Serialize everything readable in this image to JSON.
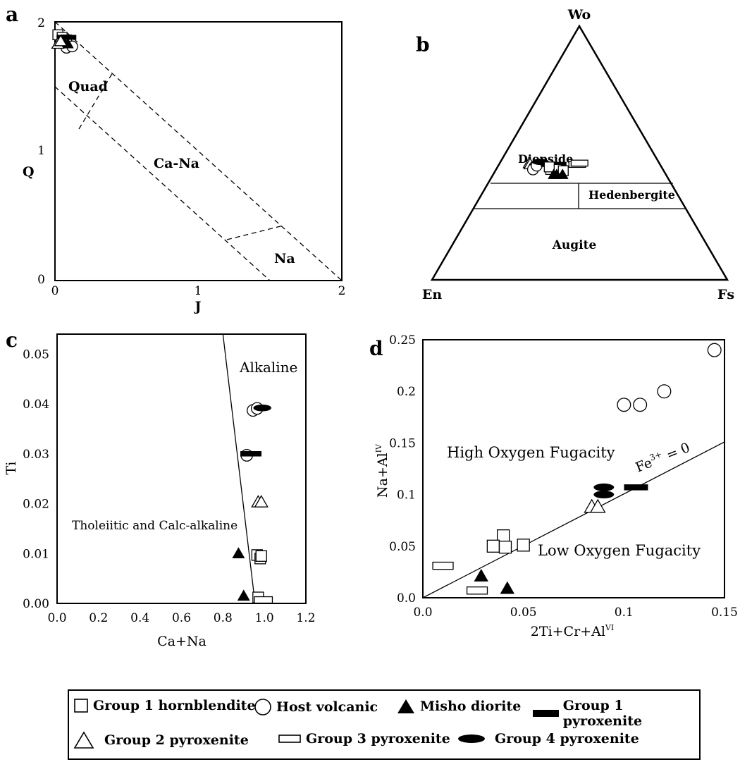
{
  "panels": {
    "a": {
      "letter": "a",
      "xlabel": "J",
      "ylabel": "Q",
      "xticks": [
        "0",
        "1",
        "2"
      ],
      "yticks": [
        "0",
        "1",
        "2"
      ],
      "regions": [
        "Quad",
        "Ca-Na",
        "Na"
      ]
    },
    "b": {
      "letter": "b",
      "vertices": [
        "Wo",
        "En",
        "Fs"
      ],
      "regions": [
        "Diopside",
        "Hedenbergite",
        "Augite"
      ]
    },
    "c": {
      "letter": "c",
      "xlabel": "Ca+Na",
      "ylabel": "Ti",
      "xticks": [
        "0.0",
        "0.2",
        "0.4",
        "0.6",
        "0.8",
        "1.0",
        "1.2"
      ],
      "yticks": [
        "0.00",
        "0.01",
        "0.02",
        "0.03",
        "0.04",
        "0.05"
      ],
      "regions": [
        "Alkaline",
        "Tholeiitic and Calc-alkaline"
      ]
    },
    "d": {
      "letter": "d",
      "xlabel_main": "2Ti+Cr+Al",
      "xlabel_sup": "VI",
      "ylabel_main": "Na+Al",
      "ylabel_sup": "IV",
      "xticks": [
        "0.0",
        "0.05",
        "0.1",
        "0.15"
      ],
      "yticks": [
        "0.0",
        "0.05",
        "0.1",
        "0.15",
        "0.2",
        "0.25"
      ],
      "regions": [
        "High Oxygen Fugacity",
        "Low Oxygen Fugacity"
      ],
      "line_label_main": "Fe",
      "line_label_sup": "3+",
      "line_label_rest": " = 0"
    }
  },
  "legend": [
    {
      "label": "Group 1 hornblendite",
      "symbol": "open-square"
    },
    {
      "label": "Host volcanic",
      "symbol": "open-circle"
    },
    {
      "label": "Misho diorite",
      "symbol": "filled-triangle"
    },
    {
      "label": "Group 1 pyroxenite",
      "symbol": "filled-bar"
    },
    {
      "label": "Group 2 pyroxenite",
      "symbol": "open-triangle"
    },
    {
      "label": "Group 3 pyroxenite",
      "symbol": "open-rectangle"
    },
    {
      "label": "Group 4 pyroxenite",
      "symbol": "filled-ellipse"
    }
  ],
  "chart_data": [
    {
      "panel": "a",
      "type": "scatter",
      "xlabel": "J",
      "ylabel": "Q",
      "xlim": [
        0,
        2
      ],
      "ylim": [
        0,
        2
      ],
      "series": [
        {
          "name": "Group 1 hornblendite",
          "symbol": "open-square",
          "points": [
            [
              0.02,
              1.9
            ],
            [
              0.05,
              1.88
            ],
            [
              0.08,
              1.86
            ]
          ]
        },
        {
          "name": "Host volcanic",
          "symbol": "open-circle",
          "points": [
            [
              0.08,
              1.8
            ],
            [
              0.12,
              1.81
            ],
            [
              0.06,
              1.84
            ]
          ]
        },
        {
          "name": "Misho diorite",
          "symbol": "filled-triangle",
          "points": [
            [
              0.06,
              1.85
            ],
            [
              0.09,
              1.83
            ]
          ]
        },
        {
          "name": "Group 1 pyroxenite",
          "symbol": "filled-bar",
          "points": [
            [
              0.08,
              1.88
            ]
          ]
        },
        {
          "name": "Group 2 pyroxenite",
          "symbol": "open-triangle",
          "points": [
            [
              0.02,
              1.83
            ],
            [
              0.04,
              1.85
            ]
          ]
        }
      ]
    },
    {
      "panel": "b",
      "type": "scatter",
      "vertices": [
        "Wo",
        "En",
        "Fs"
      ],
      "series": [
        {
          "name": "Group 2 pyroxenite",
          "symbol": "open-triangle",
          "points": [
            [
              46,
              44,
              10
            ],
            [
              45.5,
              44,
              10.5
            ]
          ]
        },
        {
          "name": "Host volcanic",
          "symbol": "open-circle",
          "points": [
            [
              44.5,
              43,
              12.5
            ],
            [
              43.5,
              44,
              12.5
            ],
            [
              45,
              42,
              13
            ]
          ]
        },
        {
          "name": "Group 4 pyroxenite",
          "symbol": "filled-ellipse",
          "points": [
            [
              46.5,
              40,
              13.5
            ]
          ]
        },
        {
          "name": "Group 1 pyroxenite",
          "symbol": "filled-bar",
          "points": [
            [
              45.5,
              37,
              17.5
            ],
            [
              45.5,
              35,
              19.5
            ]
          ]
        },
        {
          "name": "Group 1 hornblendite",
          "symbol": "open-square",
          "points": [
            [
              43.5,
              38,
              18.5
            ],
            [
              43.5,
              36,
              20.5
            ],
            [
              44.5,
              38,
              17.5
            ],
            [
              43,
              34,
              23
            ]
          ]
        },
        {
          "name": "Group 3 pyroxenite",
          "symbol": "open-rectangle",
          "points": [
            [
              45.5,
              28,
              26.5
            ],
            [
              46,
              27,
              27
            ]
          ]
        },
        {
          "name": "Misho diorite",
          "symbol": "filled-triangle",
          "points": [
            [
              41.5,
              38,
              20.5
            ],
            [
              41.5,
              37,
              21.5
            ],
            [
              41.5,
              35,
              23.5
            ]
          ]
        }
      ]
    },
    {
      "panel": "c",
      "type": "scatter",
      "xlabel": "Ca+Na",
      "ylabel": "Ti",
      "xlim": [
        0,
        1.2
      ],
      "ylim": [
        0,
        0.054
      ],
      "series": [
        {
          "name": "Host volcanic",
          "symbol": "open-circle",
          "points": [
            [
              0.945,
              0.0387
            ],
            [
              0.965,
              0.0391
            ],
            [
              0.915,
              0.0297
            ]
          ]
        },
        {
          "name": "Group 4 pyroxenite",
          "symbol": "filled-ellipse",
          "points": [
            [
              0.99,
              0.0392
            ]
          ]
        },
        {
          "name": "Group 1 pyroxenite",
          "symbol": "filled-bar",
          "points": [
            [
              0.935,
              0.03
            ]
          ]
        },
        {
          "name": "Group 2 pyroxenite",
          "symbol": "open-triangle",
          "points": [
            [
              0.97,
              0.0203
            ],
            [
              0.985,
              0.0203
            ]
          ]
        },
        {
          "name": "Misho diorite",
          "symbol": "filled-triangle",
          "points": [
            [
              0.875,
              0.01
            ],
            [
              0.9,
              0.0015
            ]
          ]
        },
        {
          "name": "Group 1 hornblendite",
          "symbol": "open-square",
          "points": [
            [
              0.965,
              0.0097
            ],
            [
              0.98,
              0.009
            ],
            [
              0.985,
              0.0095
            ],
            [
              0.97,
              0.0012
            ]
          ]
        },
        {
          "name": "Group 3 pyroxenite",
          "symbol": "open-rectangle",
          "points": [
            [
              0.995,
              0.0007
            ]
          ]
        }
      ],
      "boundary_line": [
        [
          0.8,
          0.054
        ],
        [
          0.955,
          0.0
        ]
      ]
    },
    {
      "panel": "d",
      "type": "scatter",
      "xlim": [
        0,
        0.15
      ],
      "ylim": [
        0,
        0.25
      ],
      "series": [
        {
          "name": "Host volcanic",
          "symbol": "open-circle",
          "points": [
            [
              0.145,
              0.24
            ],
            [
              0.12,
              0.2
            ],
            [
              0.1,
              0.187
            ],
            [
              0.108,
              0.187
            ]
          ]
        },
        {
          "name": "Group 4 pyroxenite",
          "symbol": "filled-ellipse",
          "points": [
            [
              0.09,
              0.107
            ],
            [
              0.09,
              0.1
            ]
          ]
        },
        {
          "name": "Group 1 pyroxenite",
          "symbol": "filled-bar",
          "points": [
            [
              0.106,
              0.107
            ]
          ]
        },
        {
          "name": "Group 2 pyroxenite",
          "symbol": "open-triangle",
          "points": [
            [
              0.084,
              0.088
            ],
            [
              0.087,
              0.088
            ]
          ]
        },
        {
          "name": "Group 1 hornblendite",
          "symbol": "open-square",
          "points": [
            [
              0.04,
              0.06
            ],
            [
              0.035,
              0.05
            ],
            [
              0.041,
              0.049
            ],
            [
              0.05,
              0.051
            ]
          ]
        },
        {
          "name": "Group 3 pyroxenite",
          "symbol": "open-rectangle",
          "points": [
            [
              0.01,
              0.031
            ],
            [
              0.027,
              0.007
            ]
          ]
        },
        {
          "name": "Misho diorite",
          "symbol": "filled-triangle",
          "points": [
            [
              0.029,
              0.021
            ],
            [
              0.042,
              0.009
            ]
          ]
        }
      ],
      "boundary_line": [
        [
          0,
          0
        ],
        [
          0.15,
          0.151
        ]
      ]
    }
  ]
}
